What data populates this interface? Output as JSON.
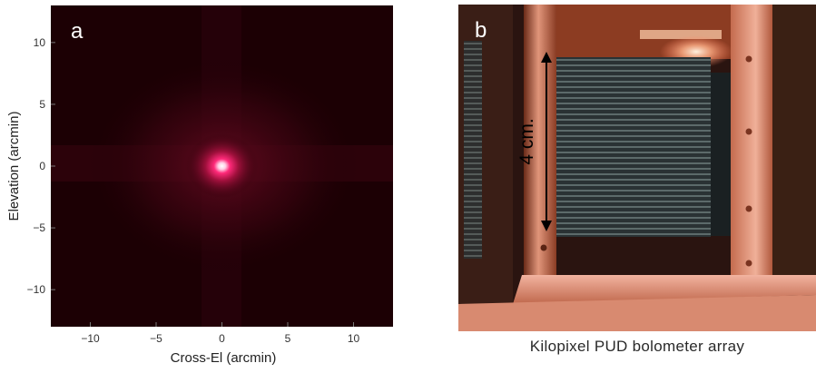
{
  "panel_a": {
    "label": "a",
    "chart_data": {
      "type": "heatmap",
      "xlabel": "Cross-El (arcmin)",
      "ylabel": "Elevation (arcmin)",
      "xlim": [
        -13,
        13
      ],
      "ylim": [
        -13,
        13
      ],
      "xticks": [
        "−10",
        "−5",
        "0",
        "5",
        "10"
      ],
      "yticks": [
        "10",
        "5",
        "0",
        "−5",
        "−10"
      ],
      "peak": {
        "x": 0,
        "y": 0
      },
      "colors": {
        "background": "#1c0004",
        "mid": "#5a0618",
        "peak": "#ffffff",
        "glow": "#ff2a7a"
      }
    }
  },
  "panel_b": {
    "label": "b",
    "scale_label": "4 cm.",
    "caption": "Kilopixel PUD bolometer array"
  }
}
